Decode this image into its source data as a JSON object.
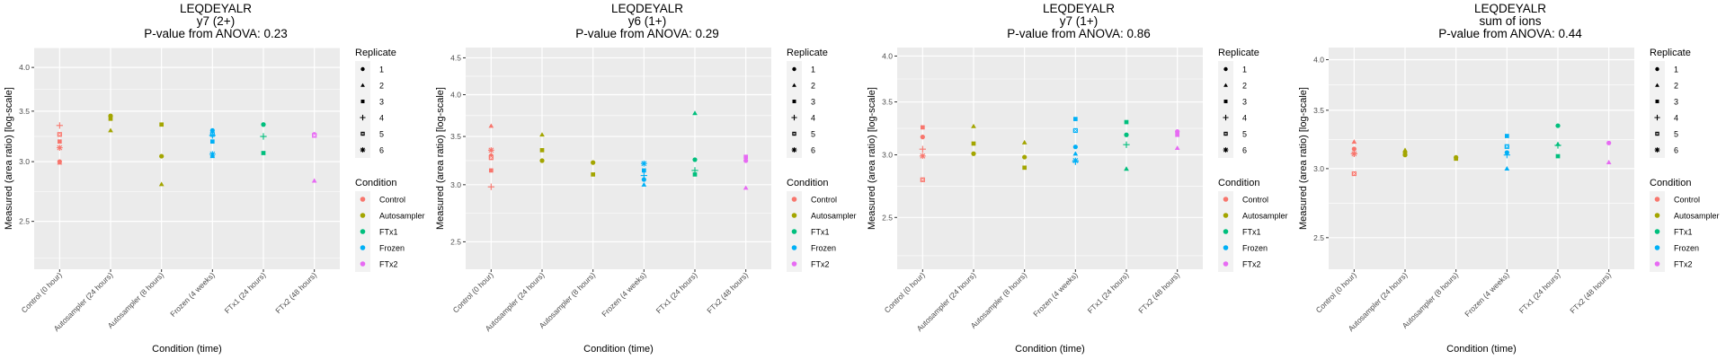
{
  "colors": {
    "Control": "#F8766D",
    "Autosampler": "#A3A500",
    "FTx1": "#00BF7D",
    "Frozen": "#00B0F6",
    "FTx2": "#E76BF3",
    "panel_bg": "#EBEBEB",
    "grid": "#FFFFFF",
    "tick_text": "#4D4D4D"
  },
  "legend": {
    "replicate_title": "Replicate",
    "replicates": [
      {
        "label": "1",
        "shape": "circle"
      },
      {
        "label": "2",
        "shape": "triangle"
      },
      {
        "label": "3",
        "shape": "square"
      },
      {
        "label": "4",
        "shape": "plus"
      },
      {
        "label": "5",
        "shape": "boxed-square"
      },
      {
        "label": "6",
        "shape": "asterisk"
      }
    ],
    "condition_title": "Condition",
    "conditions": [
      "Control",
      "Autosampler",
      "FTx1",
      "Frozen",
      "FTx2"
    ]
  },
  "chart_data": [
    {
      "type": "scatter",
      "title": "LEQDEYALR",
      "subtitle": "y7 (2+)",
      "caption": "P-value from ANOVA: 0.23",
      "xlabel": "Condition (time)",
      "ylabel": "Measured (area ratio) [log-scale]",
      "yscale": "log",
      "ylim": [
        2.16,
        4.25
      ],
      "yticks": [
        2.5,
        3.0,
        3.5,
        4.0
      ],
      "ytick_labels": [
        "2.5",
        "3.0",
        "3.5",
        "4.0"
      ],
      "grid": true,
      "legend_position": "right",
      "categories": [
        "Control (0 hour)",
        "Autosampler (24 hours)",
        "Autosampler (8 hours)",
        "Frozen (4 weeks)",
        "FTx1 (24 hours)",
        "FTx2 (48 hours)"
      ],
      "points": [
        {
          "x": "Control (0 hour)",
          "condition": "Control",
          "replicate": "4",
          "y": 3.35
        },
        {
          "x": "Control (0 hour)",
          "condition": "Control",
          "replicate": "5",
          "y": 3.26
        },
        {
          "x": "Control (0 hour)",
          "condition": "Control",
          "replicate": "3",
          "y": 3.19
        },
        {
          "x": "Control (0 hour)",
          "condition": "Control",
          "replicate": "6",
          "y": 3.13
        },
        {
          "x": "Control (0 hour)",
          "condition": "Control",
          "replicate": "1",
          "y": 3.0
        },
        {
          "x": "Control (0 hour)",
          "condition": "Control",
          "replicate": "2",
          "y": 2.99
        },
        {
          "x": "Autosampler (24 hours)",
          "condition": "Autosampler",
          "replicate": "1",
          "y": 3.45
        },
        {
          "x": "Autosampler (24 hours)",
          "condition": "Autosampler",
          "replicate": "3",
          "y": 3.42
        },
        {
          "x": "Autosampler (24 hours)",
          "condition": "Autosampler",
          "replicate": "2",
          "y": 3.3
        },
        {
          "x": "Autosampler (8 hours)",
          "condition": "Autosampler",
          "replicate": "3",
          "y": 3.36
        },
        {
          "x": "Autosampler (8 hours)",
          "condition": "Autosampler",
          "replicate": "1",
          "y": 3.05
        },
        {
          "x": "Autosampler (8 hours)",
          "condition": "Autosampler",
          "replicate": "2",
          "y": 2.8
        },
        {
          "x": "Frozen (4 weeks)",
          "condition": "Frozen",
          "replicate": "1",
          "y": 3.3
        },
        {
          "x": "Frozen (4 weeks)",
          "condition": "Frozen",
          "replicate": "5",
          "y": 3.26
        },
        {
          "x": "Frozen (4 weeks)",
          "condition": "Frozen",
          "replicate": "4",
          "y": 3.25
        },
        {
          "x": "Frozen (4 weeks)",
          "condition": "Frozen",
          "replicate": "3",
          "y": 3.19
        },
        {
          "x": "Frozen (4 weeks)",
          "condition": "Frozen",
          "replicate": "6",
          "y": 3.07
        },
        {
          "x": "Frozen (4 weeks)",
          "condition": "Frozen",
          "replicate": "2",
          "y": 3.05
        },
        {
          "x": "FTx1 (24 hours)",
          "condition": "FTx1",
          "replicate": "1",
          "y": 3.36
        },
        {
          "x": "FTx1 (24 hours)",
          "condition": "FTx1",
          "replicate": "4",
          "y": 3.24
        },
        {
          "x": "FTx1 (24 hours)",
          "condition": "FTx1",
          "replicate": "3",
          "y": 3.08
        },
        {
          "x": "FTx2 (48 hours)",
          "condition": "FTx2",
          "replicate": "1",
          "y": 3.26
        },
        {
          "x": "FTx2 (48 hours)",
          "condition": "FTx2",
          "replicate": "5",
          "y": 3.25
        },
        {
          "x": "FTx2 (48 hours)",
          "condition": "FTx2",
          "replicate": "2",
          "y": 2.83
        }
      ]
    },
    {
      "type": "scatter",
      "title": "LEQDEYALR",
      "subtitle": "y6 (1+)",
      "caption": "P-value from ANOVA: 0.29",
      "xlabel": "Condition (time)",
      "ylabel": "Measured (area ratio) [log-scale]",
      "yscale": "log",
      "ylim": [
        2.29,
        4.65
      ],
      "yticks": [
        2.5,
        3.0,
        3.5,
        4.0,
        4.5
      ],
      "ytick_labels": [
        "2.5",
        "3.0",
        "3.5",
        "4.0",
        "4.5"
      ],
      "grid": true,
      "legend_position": "right",
      "categories": [
        "Control (0 hour)",
        "Autosampler (24 hours)",
        "Autosampler (8 hours)",
        "Frozen (4 weeks)",
        "FTx1 (24 hours)",
        "FTx2 (48 hours)"
      ],
      "points": [
        {
          "x": "Control (0 hour)",
          "condition": "Control",
          "replicate": "2",
          "y": 3.62
        },
        {
          "x": "Control (0 hour)",
          "condition": "Control",
          "replicate": "6",
          "y": 3.35
        },
        {
          "x": "Control (0 hour)",
          "condition": "Control",
          "replicate": "1",
          "y": 3.29
        },
        {
          "x": "Control (0 hour)",
          "condition": "Control",
          "replicate": "5",
          "y": 3.27
        },
        {
          "x": "Control (0 hour)",
          "condition": "Control",
          "replicate": "3",
          "y": 3.14
        },
        {
          "x": "Control (0 hour)",
          "condition": "Control",
          "replicate": "4",
          "y": 2.98
        },
        {
          "x": "Autosampler (24 hours)",
          "condition": "Autosampler",
          "replicate": "2",
          "y": 3.52
        },
        {
          "x": "Autosampler (24 hours)",
          "condition": "Autosampler",
          "replicate": "3",
          "y": 3.35
        },
        {
          "x": "Autosampler (24 hours)",
          "condition": "Autosampler",
          "replicate": "1",
          "y": 3.24
        },
        {
          "x": "Autosampler (8 hours)",
          "condition": "Autosampler",
          "replicate": "1",
          "y": 3.22
        },
        {
          "x": "Autosampler (8 hours)",
          "condition": "Autosampler",
          "replicate": "3",
          "y": 3.1
        },
        {
          "x": "Frozen (4 weeks)",
          "condition": "Frozen",
          "replicate": "6",
          "y": 3.21
        },
        {
          "x": "Frozen (4 weeks)",
          "condition": "Frozen",
          "replicate": "3",
          "y": 3.14
        },
        {
          "x": "Frozen (4 weeks)",
          "condition": "Frozen",
          "replicate": "4",
          "y": 3.09
        },
        {
          "x": "Frozen (4 weeks)",
          "condition": "Frozen",
          "replicate": "1",
          "y": 3.05
        },
        {
          "x": "Frozen (4 weeks)",
          "condition": "Frozen",
          "replicate": "2",
          "y": 3.0
        },
        {
          "x": "FTx1 (24 hours)",
          "condition": "FTx1",
          "replicate": "2",
          "y": 3.77
        },
        {
          "x": "FTx1 (24 hours)",
          "condition": "FTx1",
          "replicate": "1",
          "y": 3.25
        },
        {
          "x": "FTx1 (24 hours)",
          "condition": "FTx1",
          "replicate": "4",
          "y": 3.14
        },
        {
          "x": "FTx1 (24 hours)",
          "condition": "FTx1",
          "replicate": "3",
          "y": 3.1
        },
        {
          "x": "FTx2 (48 hours)",
          "condition": "FTx2",
          "replicate": "3",
          "y": 3.28
        },
        {
          "x": "FTx2 (48 hours)",
          "condition": "FTx2",
          "replicate": "1",
          "y": 3.24
        },
        {
          "x": "FTx2 (48 hours)",
          "condition": "FTx2",
          "replicate": "2",
          "y": 2.97
        }
      ]
    },
    {
      "type": "scatter",
      "title": "LEQDEYALR",
      "subtitle": "y7 (1+)",
      "caption": "P-value from ANOVA: 0.86",
      "xlabel": "Condition (time)",
      "ylabel": "Measured (area ratio) [log-scale]",
      "yscale": "log",
      "ylim": [
        2.15,
        4.1
      ],
      "yticks": [
        2.5,
        3.0,
        3.5,
        4.0
      ],
      "ytick_labels": [
        "2.5",
        "3.0",
        "3.5",
        "4.0"
      ],
      "grid": true,
      "legend_position": "right",
      "categories": [
        "Control (0 hour)",
        "Autosampler (24 hours)",
        "Autosampler (8 hours)",
        "Frozen (4 weeks)",
        "FTx1 (24 hours)",
        "FTx2 (48 hours)"
      ],
      "points": [
        {
          "x": "Control (0 hour)",
          "condition": "Control",
          "replicate": "3",
          "y": 3.25
        },
        {
          "x": "Control (0 hour)",
          "condition": "Control",
          "replicate": "1",
          "y": 3.16
        },
        {
          "x": "Control (0 hour)",
          "condition": "Control",
          "replicate": "4",
          "y": 3.05
        },
        {
          "x": "Control (0 hour)",
          "condition": "Control",
          "replicate": "6",
          "y": 2.99
        },
        {
          "x": "Control (0 hour)",
          "condition": "Control",
          "replicate": "5",
          "y": 2.79
        },
        {
          "x": "Autosampler (24 hours)",
          "condition": "Autosampler",
          "replicate": "2",
          "y": 3.26
        },
        {
          "x": "Autosampler (24 hours)",
          "condition": "Autosampler",
          "replicate": "3",
          "y": 3.1
        },
        {
          "x": "Autosampler (24 hours)",
          "condition": "Autosampler",
          "replicate": "1",
          "y": 3.01
        },
        {
          "x": "Autosampler (8 hours)",
          "condition": "Autosampler",
          "replicate": "2",
          "y": 3.11
        },
        {
          "x": "Autosampler (8 hours)",
          "condition": "Autosampler",
          "replicate": "1",
          "y": 2.98
        },
        {
          "x": "Autosampler (8 hours)",
          "condition": "Autosampler",
          "replicate": "3",
          "y": 2.89
        },
        {
          "x": "Frozen (4 weeks)",
          "condition": "Frozen",
          "replicate": "3",
          "y": 3.33
        },
        {
          "x": "Frozen (4 weeks)",
          "condition": "Frozen",
          "replicate": "5",
          "y": 3.22
        },
        {
          "x": "Frozen (4 weeks)",
          "condition": "Frozen",
          "replicate": "1",
          "y": 3.07
        },
        {
          "x": "Frozen (4 weeks)",
          "condition": "Frozen",
          "replicate": "2",
          "y": 3.01
        },
        {
          "x": "Frozen (4 weeks)",
          "condition": "Frozen",
          "replicate": "6",
          "y": 2.95
        },
        {
          "x": "Frozen (4 weeks)",
          "condition": "Frozen",
          "replicate": "4",
          "y": 2.94
        },
        {
          "x": "FTx1 (24 hours)",
          "condition": "FTx1",
          "replicate": "3",
          "y": 3.3
        },
        {
          "x": "FTx1 (24 hours)",
          "condition": "FTx1",
          "replicate": "1",
          "y": 3.18
        },
        {
          "x": "FTx1 (24 hours)",
          "condition": "FTx1",
          "replicate": "4",
          "y": 3.09
        },
        {
          "x": "FTx1 (24 hours)",
          "condition": "FTx1",
          "replicate": "2",
          "y": 2.88
        },
        {
          "x": "FTx2 (48 hours)",
          "condition": "FTx2",
          "replicate": "1",
          "y": 3.21
        },
        {
          "x": "FTx2 (48 hours)",
          "condition": "FTx2",
          "replicate": "3",
          "y": 3.18
        },
        {
          "x": "FTx2 (48 hours)",
          "condition": "FTx2",
          "replicate": "2",
          "y": 3.06
        }
      ]
    },
    {
      "type": "scatter",
      "title": "LEQDEYALR",
      "subtitle": "sum of ions",
      "caption": "P-value from ANOVA: 0.44",
      "xlabel": "Condition (time)",
      "ylabel": "Measured (area ratio) [log-scale]",
      "yscale": "log",
      "ylim": [
        2.3,
        4.13
      ],
      "yticks": [
        2.5,
        3.0,
        3.5,
        4.0
      ],
      "ytick_labels": [
        "2.5",
        "3.0",
        "3.5",
        "4.0"
      ],
      "grid": true,
      "legend_position": "right",
      "categories": [
        "Control (0 hour)",
        "Autosampler (24 hours)",
        "Autosampler (8 hours)",
        "Frozen (4 weeks)",
        "FTx1 (24 hours)",
        "FTx2 (48 hours)"
      ],
      "points": [
        {
          "x": "Control (0 hour)",
          "condition": "Control",
          "replicate": "2",
          "y": 3.22
        },
        {
          "x": "Control (0 hour)",
          "condition": "Control",
          "replicate": "1",
          "y": 3.16
        },
        {
          "x": "Control (0 hour)",
          "condition": "Control",
          "replicate": "4",
          "y": 3.12
        },
        {
          "x": "Control (0 hour)",
          "condition": "Control",
          "replicate": "6",
          "y": 3.12
        },
        {
          "x": "Control (0 hour)",
          "condition": "Control",
          "replicate": "5",
          "y": 2.96
        },
        {
          "x": "Autosampler (24 hours)",
          "condition": "Autosampler",
          "replicate": "2",
          "y": 3.15
        },
        {
          "x": "Autosampler (24 hours)",
          "condition": "Autosampler",
          "replicate": "3",
          "y": 3.12
        },
        {
          "x": "Autosampler (24 hours)",
          "condition": "Autosampler",
          "replicate": "1",
          "y": 3.11
        },
        {
          "x": "Autosampler (8 hours)",
          "condition": "Autosampler",
          "replicate": "1",
          "y": 3.09
        },
        {
          "x": "Autosampler (8 hours)",
          "condition": "Autosampler",
          "replicate": "3",
          "y": 3.08
        },
        {
          "x": "Frozen (4 weeks)",
          "condition": "Frozen",
          "replicate": "3",
          "y": 3.27
        },
        {
          "x": "Frozen (4 weeks)",
          "condition": "Frozen",
          "replicate": "5",
          "y": 3.18
        },
        {
          "x": "Frozen (4 weeks)",
          "condition": "Frozen",
          "replicate": "1",
          "y": 3.13
        },
        {
          "x": "Frozen (4 weeks)",
          "condition": "Frozen",
          "replicate": "4",
          "y": 3.11
        },
        {
          "x": "Frozen (4 weeks)",
          "condition": "Frozen",
          "replicate": "2",
          "y": 3.0
        },
        {
          "x": "FTx1 (24 hours)",
          "condition": "FTx1",
          "replicate": "1",
          "y": 3.36
        },
        {
          "x": "FTx1 (24 hours)",
          "condition": "FTx1",
          "replicate": "2",
          "y": 3.2
        },
        {
          "x": "FTx1 (24 hours)",
          "condition": "FTx1",
          "replicate": "4",
          "y": 3.19
        },
        {
          "x": "FTx1 (24 hours)",
          "condition": "FTx1",
          "replicate": "3",
          "y": 3.1
        },
        {
          "x": "FTx2 (48 hours)",
          "condition": "FTx2",
          "replicate": "1",
          "y": 3.21
        },
        {
          "x": "FTx2 (48 hours)",
          "condition": "FTx2",
          "replicate": "2",
          "y": 3.05
        }
      ]
    }
  ]
}
